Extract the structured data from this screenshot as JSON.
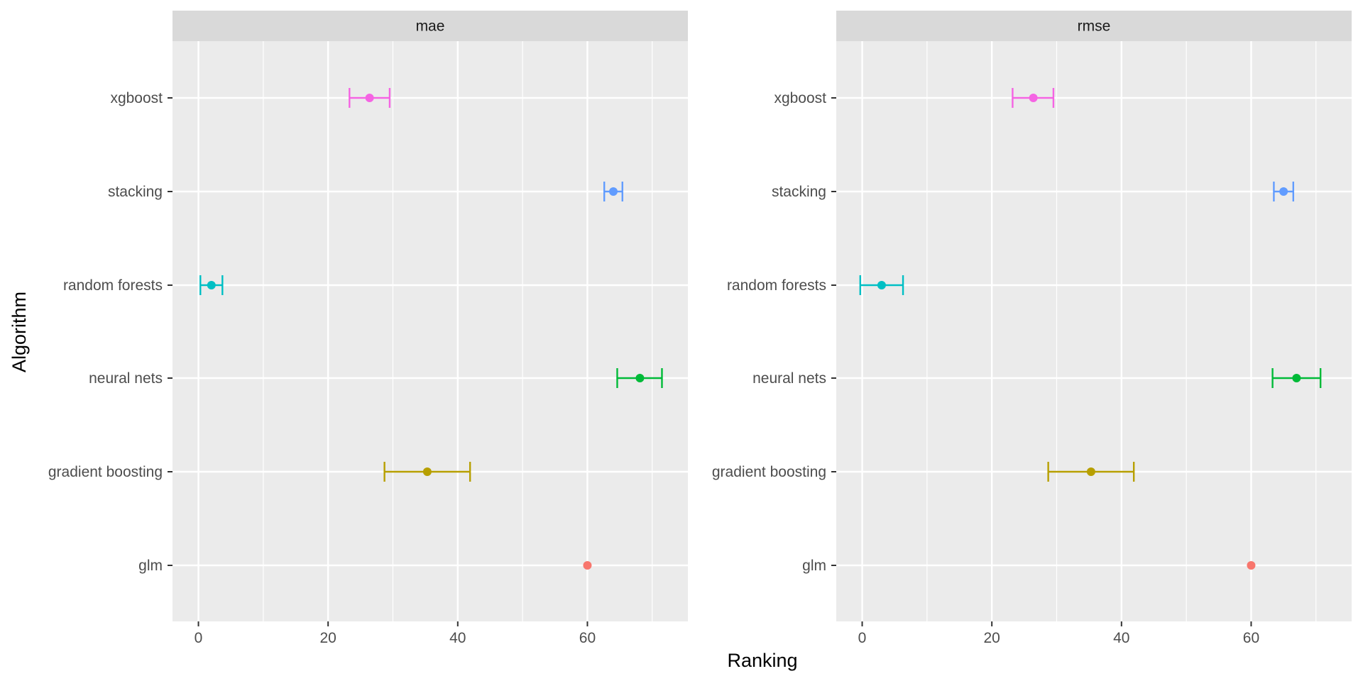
{
  "chart_data": {
    "type": "errorbar",
    "facet_by": "metric",
    "xlabel": "Ranking",
    "ylabel": "Algorithm",
    "xlim": [
      -4,
      75.5
    ],
    "x_ticks": [
      0,
      20,
      40,
      60
    ],
    "grid": true,
    "legend": "none",
    "categories": [
      "glm",
      "gradient boosting",
      "neural nets",
      "random forests",
      "stacking",
      "xgboost"
    ],
    "colors": {
      "glm": "#F8766D",
      "gradient boosting": "#B79F00",
      "neural nets": "#00BA38",
      "random forests": "#00BFC4",
      "stacking": "#619CFF",
      "xgboost": "#F564E3"
    },
    "panels": [
      {
        "facet": "mae",
        "series": [
          {
            "name": "glm",
            "mean": 60.0,
            "lower": 60.0,
            "upper": 60.0
          },
          {
            "name": "gradient boosting",
            "mean": 35.3,
            "lower": 28.7,
            "upper": 41.9
          },
          {
            "name": "neural nets",
            "mean": 68.1,
            "lower": 64.6,
            "upper": 71.5
          },
          {
            "name": "random forests",
            "mean": 2.0,
            "lower": 0.3,
            "upper": 3.7
          },
          {
            "name": "stacking",
            "mean": 64.0,
            "lower": 62.6,
            "upper": 65.4
          },
          {
            "name": "xgboost",
            "mean": 26.4,
            "lower": 23.3,
            "upper": 29.5
          }
        ]
      },
      {
        "facet": "rmse",
        "series": [
          {
            "name": "glm",
            "mean": 60.0,
            "lower": 60.0,
            "upper": 60.0
          },
          {
            "name": "gradient boosting",
            "mean": 35.3,
            "lower": 28.7,
            "upper": 41.9
          },
          {
            "name": "neural nets",
            "mean": 67.0,
            "lower": 63.3,
            "upper": 70.7
          },
          {
            "name": "random forests",
            "mean": 3.0,
            "lower": -0.3,
            "upper": 6.3
          },
          {
            "name": "stacking",
            "mean": 65.0,
            "lower": 63.5,
            "upper": 66.5
          },
          {
            "name": "xgboost",
            "mean": 26.4,
            "lower": 23.2,
            "upper": 29.5
          }
        ]
      }
    ]
  }
}
